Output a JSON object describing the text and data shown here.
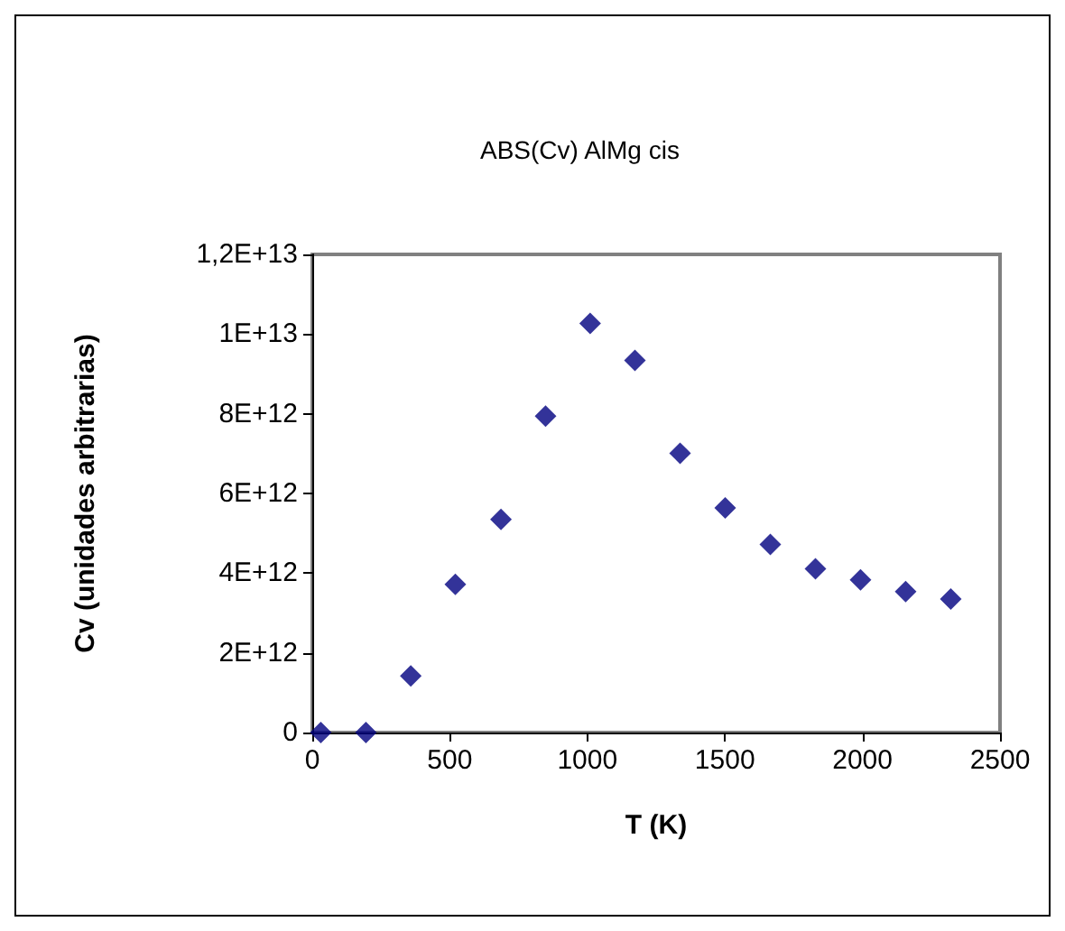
{
  "chart_data": {
    "type": "scatter",
    "title": "ABS(Cv) AlMg cis",
    "xlabel": "T (K)",
    "ylabel": "Cv (unidades arbitrarias)",
    "x": [
      31,
      195,
      358,
      520,
      686,
      848,
      1010,
      1173,
      1337,
      1501,
      1665,
      1829,
      1993,
      2157,
      2321
    ],
    "series": [
      {
        "color": "#000080",
        "values": [
          0,
          0,
          1420000000000.0,
          3720000000000.0,
          5350000000000.0,
          7940000000000.0,
          10270000000000.0,
          9340000000000.0,
          7010000000000.0,
          5640000000000.0,
          4720000000000.0,
          4110000000000.0,
          3830000000000.0,
          3540000000000.0,
          3350000000000.0
        ]
      }
    ],
    "xlim": [
      0,
      2500
    ],
    "xticks": [
      0,
      500,
      1000,
      1500,
      2000,
      2500
    ],
    "ylim": [
      0,
      12000000000000.0
    ],
    "yticks": [
      {
        "value": 0,
        "label": "0"
      },
      {
        "value": 2000000000000.0,
        "label": "2E+12"
      },
      {
        "value": 4000000000000.0,
        "label": "4E+12"
      },
      {
        "value": 6000000000000.0,
        "label": "6E+12"
      },
      {
        "value": 8000000000000.0,
        "label": "8E+12"
      },
      {
        "value": 10000000000000.0,
        "label": "1E+13"
      },
      {
        "value": 12000000000000.0,
        "label": "1,2E+13"
      }
    ],
    "grid": false,
    "marker": "diamond"
  }
}
